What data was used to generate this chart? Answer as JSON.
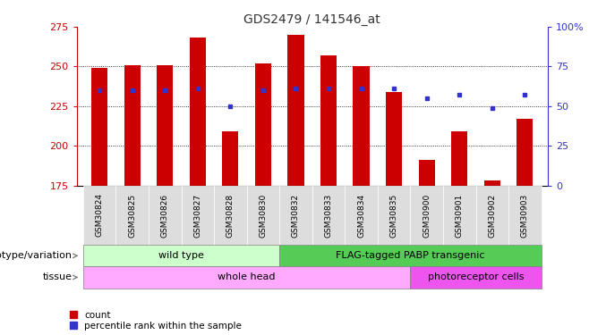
{
  "title": "GDS2479 / 141546_at",
  "categories": [
    "GSM30824",
    "GSM30825",
    "GSM30826",
    "GSM30827",
    "GSM30828",
    "GSM30830",
    "GSM30832",
    "GSM30833",
    "GSM30834",
    "GSM30835",
    "GSM30900",
    "GSM30901",
    "GSM30902",
    "GSM30903"
  ],
  "bar_values": [
    249,
    251,
    251,
    268,
    209,
    252,
    270,
    257,
    250,
    234,
    191,
    209,
    178,
    217
  ],
  "percentile_values": [
    60,
    60,
    60,
    61,
    50,
    60,
    61,
    61,
    61,
    61,
    55,
    57,
    49,
    57
  ],
  "ylim_left": [
    175,
    275
  ],
  "ylim_right": [
    0,
    100
  ],
  "yticks_left": [
    175,
    200,
    225,
    250,
    275
  ],
  "yticks_right": [
    0,
    25,
    50,
    75,
    100
  ],
  "bar_color": "#cc0000",
  "marker_color": "#3333cc",
  "title_color": "#333333",
  "left_axis_color": "#cc0000",
  "right_axis_color": "#3333cc",
  "grid_color": "black",
  "group1_label": "wild type",
  "group2_label": "FLAG-tagged PABP transgenic",
  "group1_end_idx": 5,
  "group2_start_idx": 6,
  "group2_end_idx": 13,
  "tissue1_label": "whole head",
  "tissue2_label": "photoreceptor cells",
  "tissue1_end_idx": 9,
  "tissue2_start_idx": 10,
  "tissue2_end_idx": 13,
  "legend_count": "count",
  "legend_percentile": "percentile rank within the sample",
  "genotype_label": "genotype/variation",
  "tissue_label": "tissue",
  "group1_color": "#ccffcc",
  "group2_color": "#55cc55",
  "tissue1_color": "#ffaaff",
  "tissue2_color": "#ee55ee",
  "xticklabel_bg": "#dddddd",
  "bar_width": 0.5,
  "xlim": [
    -0.7,
    13.7
  ]
}
